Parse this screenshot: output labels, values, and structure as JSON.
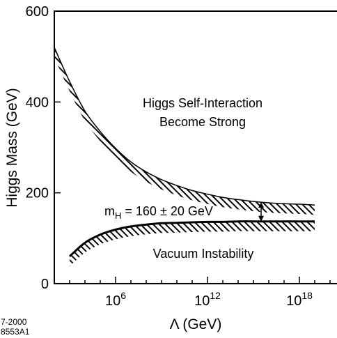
{
  "chart_data": {
    "type": "line",
    "ylabel": "Higgs Mass  (GeV)",
    "xlabel": "Λ  (GeV)",
    "xscale": "log",
    "xlim_log10": [
      2,
      20.5
    ],
    "ylim": [
      0,
      600
    ],
    "y_ticks": [
      {
        "value": 0,
        "label": "0"
      },
      {
        "value": 200,
        "label": "200"
      },
      {
        "value": 400,
        "label": "400"
      },
      {
        "value": 600,
        "label": "600"
      }
    ],
    "x_ticks": [
      {
        "log10": 6,
        "base": "10",
        "exp": "6"
      },
      {
        "log10": 12,
        "base": "10",
        "exp": "12"
      },
      {
        "log10": 18,
        "base": "10",
        "exp": "18"
      }
    ],
    "grid": false,
    "series": [
      {
        "id": "upper",
        "hatch": "below",
        "x_log10": [
          2.0,
          3.0,
          4.0,
          5.0,
          6.0,
          7.0,
          8.0,
          9.0,
          10.0,
          11.0,
          12.0,
          13.0,
          14.0,
          15.0,
          16.0,
          17.0,
          18.0,
          19.0
        ],
        "y": [
          520,
          445,
          380,
          335,
          298,
          268,
          246,
          229,
          216,
          205,
          197,
          190,
          185,
          181,
          178,
          176,
          175,
          173
        ]
      },
      {
        "id": "lower",
        "hatch": "above",
        "x_log10": [
          3.0,
          4.0,
          5.0,
          6.0,
          7.0,
          8.0,
          9.0,
          10.0,
          11.0,
          12.0,
          13.0,
          14.0,
          15.0,
          16.0,
          17.0,
          18.0,
          19.0
        ],
        "y": [
          60,
          90,
          108,
          119,
          126,
          130,
          133,
          134,
          135,
          136,
          136,
          137,
          137,
          137,
          137,
          137,
          137
        ]
      }
    ],
    "annotations": {
      "upper_region_line1": "Higgs Self-Interaction",
      "upper_region_line2": "Become Strong",
      "lower_region": "Vacuum Instability",
      "mass_text_prefix": "m",
      "mass_text_sub": "H",
      "mass_text_value": " = 160 ± 20 GeV",
      "arrow_at_log10": 15.5
    },
    "figure_id_line1": "7-2000",
    "figure_id_line2": "8553A1"
  }
}
